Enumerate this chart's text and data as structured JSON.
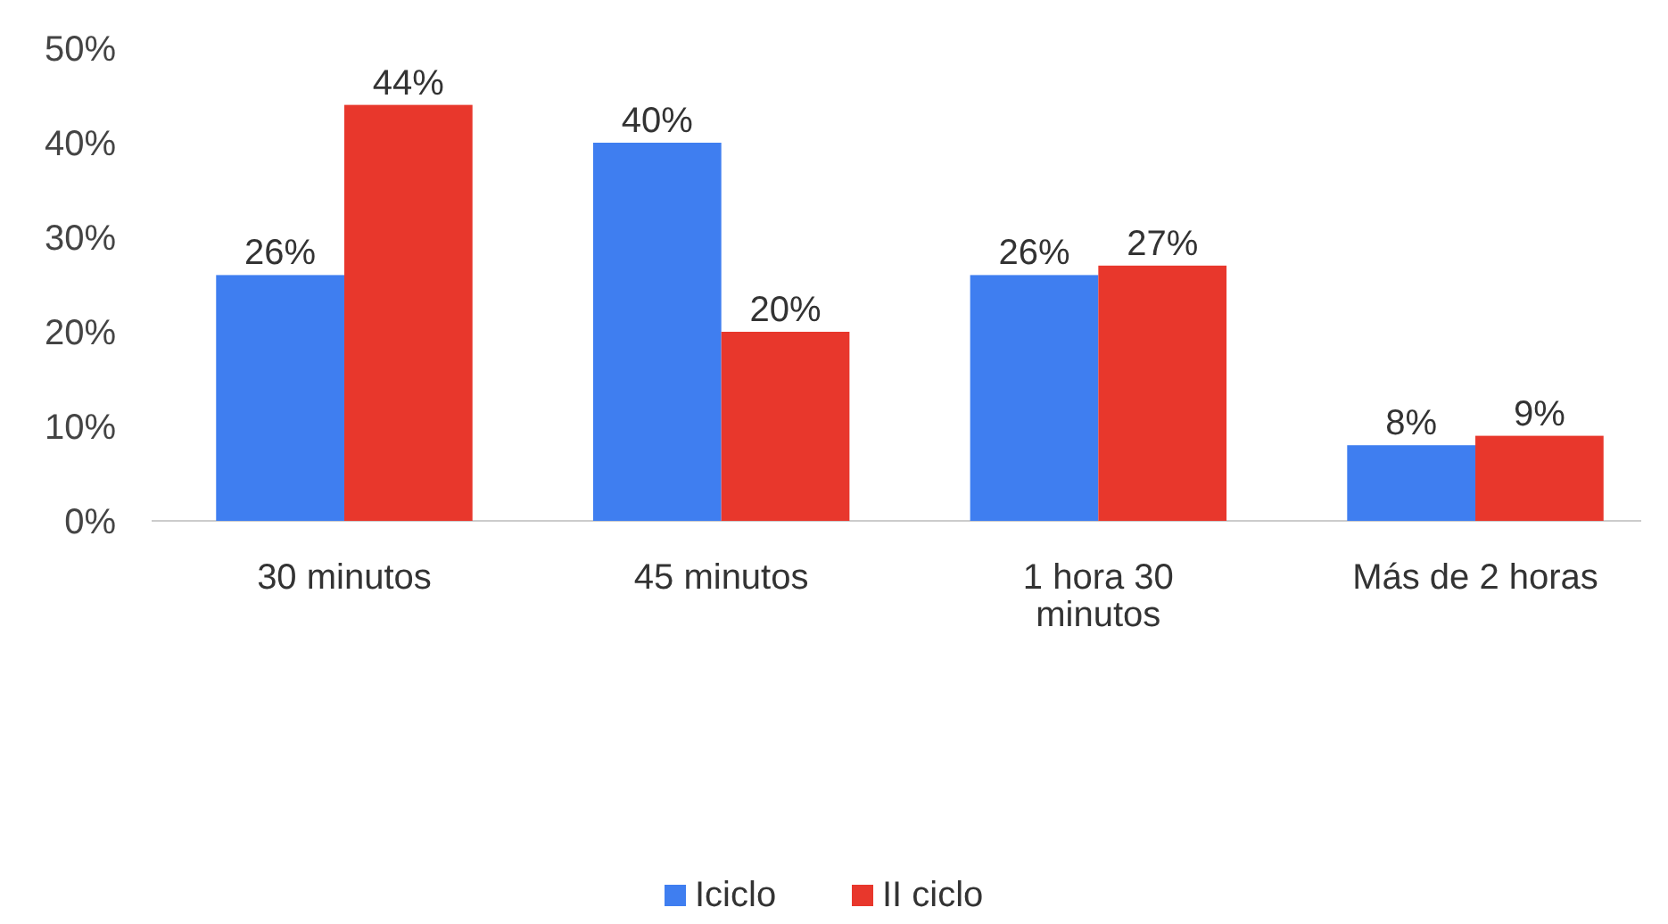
{
  "chart_data": {
    "type": "bar",
    "categories": [
      "30 minutos",
      "45 minutos",
      "1 hora 30 minutos",
      "Más de 2 horas"
    ],
    "series": [
      {
        "name": "Iciclo",
        "color": "#3f7ef0",
        "values": [
          26,
          40,
          26,
          8
        ],
        "value_labels": [
          "26%",
          "40%",
          "26%",
          "8%"
        ]
      },
      {
        "name": "II ciclo",
        "color": "#e8372c",
        "values": [
          44,
          20,
          27,
          9
        ],
        "value_labels": [
          "44%",
          "20%",
          "27%",
          "9%"
        ]
      }
    ],
    "ylim": [
      0,
      50
    ],
    "yticks": [
      {
        "value": 0,
        "label": "0%"
      },
      {
        "value": 10,
        "label": "10%"
      },
      {
        "value": 20,
        "label": "20%"
      },
      {
        "value": 30,
        "label": "30%"
      },
      {
        "value": 40,
        "label": "40%"
      },
      {
        "value": 50,
        "label": "50%"
      }
    ],
    "legend": "bottom"
  }
}
